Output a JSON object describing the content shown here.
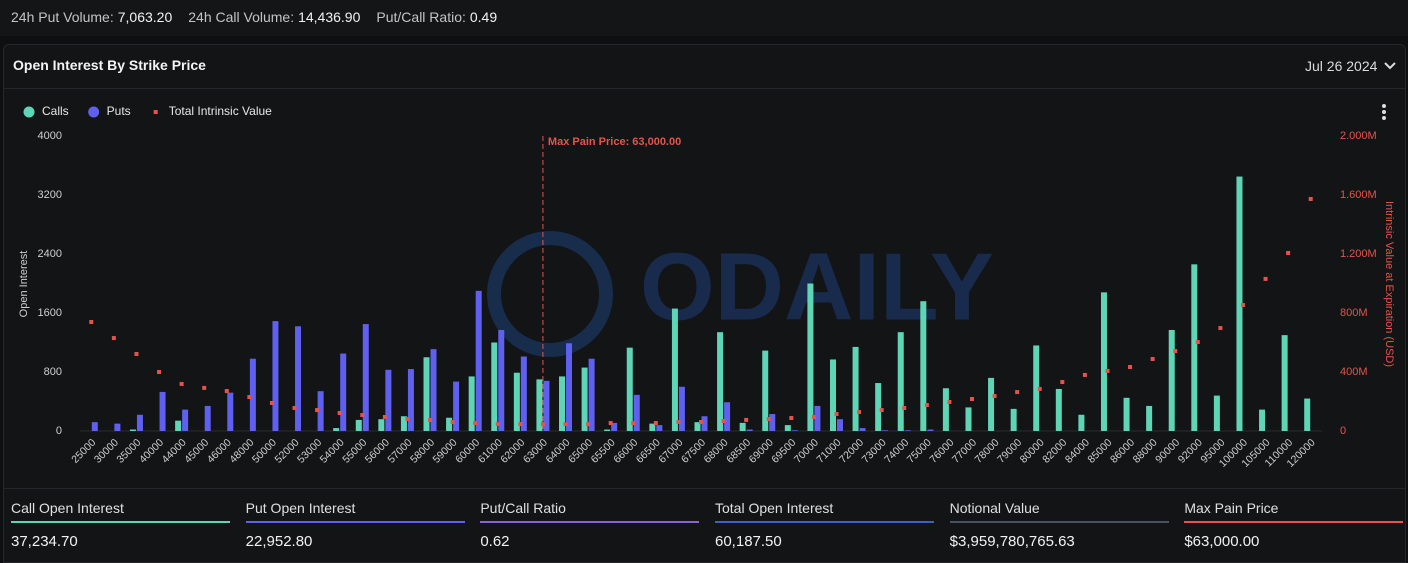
{
  "header_stats": [
    {
      "label": "24h Put Volume:",
      "value": "7,063.20"
    },
    {
      "label": "24h Call Volume:",
      "value": "14,436.90"
    },
    {
      "label": "Put/Call Ratio:",
      "value": "0.49"
    }
  ],
  "panel": {
    "title": "Open Interest By Strike Price",
    "date": "Jul 26 2024"
  },
  "chart_data": {
    "type": "bar",
    "watermark": "ODAILY",
    "y_label": "Open Interest",
    "y2_label": "Intrinsic Value at Expiration (USD)",
    "categories": [
      "25000",
      "30000",
      "35000",
      "40000",
      "44000",
      "45000",
      "46000",
      "48000",
      "50000",
      "52000",
      "53000",
      "54000",
      "55000",
      "56000",
      "57000",
      "58000",
      "59000",
      "60000",
      "61000",
      "62000",
      "63000",
      "64000",
      "65000",
      "65500",
      "66000",
      "66500",
      "67000",
      "67500",
      "68000",
      "68500",
      "69000",
      "69500",
      "70000",
      "71000",
      "72000",
      "73000",
      "74000",
      "75000",
      "76000",
      "77000",
      "78000",
      "79000",
      "80000",
      "82000",
      "84000",
      "85000",
      "86000",
      "88000",
      "90000",
      "92000",
      "95000",
      "100000",
      "105000",
      "110000",
      "120000"
    ],
    "series": [
      {
        "name": "Calls",
        "type": "bar",
        "color": "#5ed6b6",
        "values": [
          0,
          0,
          20,
          0,
          140,
          0,
          0,
          0,
          0,
          0,
          0,
          40,
          150,
          160,
          200,
          1000,
          180,
          740,
          1200,
          790,
          700,
          740,
          860,
          20,
          1130,
          100,
          1660,
          120,
          1340,
          110,
          1090,
          80,
          2000,
          970,
          1140,
          650,
          1340,
          1760,
          580,
          320,
          720,
          300,
          1160,
          570,
          220,
          1880,
          450,
          340,
          1370,
          2260,
          480,
          3450,
          290,
          1300,
          440
        ]
      },
      {
        "name": "Puts",
        "type": "bar",
        "color": "#5f5ff0",
        "values": [
          120,
          100,
          220,
          530,
          290,
          340,
          520,
          980,
          1490,
          1420,
          540,
          1050,
          1450,
          830,
          840,
          1110,
          670,
          1900,
          1370,
          1010,
          680,
          1190,
          980,
          110,
          490,
          80,
          600,
          200,
          390,
          20,
          230,
          10,
          340,
          160,
          40,
          10,
          10,
          20,
          0,
          0,
          0,
          0,
          0,
          0,
          0,
          0,
          0,
          0,
          0,
          0,
          0,
          0,
          0,
          0,
          0
        ]
      },
      {
        "name": "Total Intrinsic Value",
        "type": "scatter",
        "axis": "y2",
        "color": "#e5534b",
        "values": [
          739,
          630,
          522,
          400,
          319,
          292,
          271,
          230,
          190,
          156,
          142,
          122,
          108,
          95,
          81,
          75,
          61,
          54,
          47,
          47,
          47,
          47,
          47,
          54,
          54,
          54,
          61,
          61,
          68,
          75,
          81,
          88,
          95,
          115,
          129,
          142,
          156,
          176,
          197,
          217,
          237,
          264,
          285,
          332,
          380,
          407,
          434,
          488,
          542,
          603,
          698,
          854,
          1031,
          1207,
          1573
        ]
      }
    ],
    "ylim": [
      0,
      4000
    ],
    "yticks": [
      0,
      800,
      1600,
      2400,
      3200,
      4000
    ],
    "y2lim": [
      0,
      2000
    ],
    "y2ticks": [
      0,
      {
        "value": 400,
        "label": "400M"
      },
      {
        "value": 800,
        "label": "800M"
      },
      {
        "value": 1200,
        "label": "1.200M"
      },
      {
        "value": 1600,
        "label": "1.600M"
      },
      {
        "value": 2000,
        "label": "2.000M"
      }
    ],
    "grid": false,
    "legend": "top-left",
    "annotation": {
      "text": "Max Pain Price: 63,000.00",
      "category": "63000",
      "color": "#e5534b"
    }
  },
  "footer_stats": [
    {
      "label": "Call Open Interest",
      "value": "37,234.70",
      "color": "#5ed6b6"
    },
    {
      "label": "Put Open Interest",
      "value": "22,952.80",
      "color": "#5f5ff0"
    },
    {
      "label": "Put/Call Ratio",
      "value": "0.62",
      "color": "#8a63d2"
    },
    {
      "label": "Total Open Interest",
      "value": "60,187.50",
      "color": "#3a62c4"
    },
    {
      "label": "Notional Value",
      "value": "$3,959,780,765.63",
      "color": "#4a5262"
    },
    {
      "label": "Max Pain Price",
      "value": "$63,000.00",
      "color": "#e5534b"
    }
  ]
}
